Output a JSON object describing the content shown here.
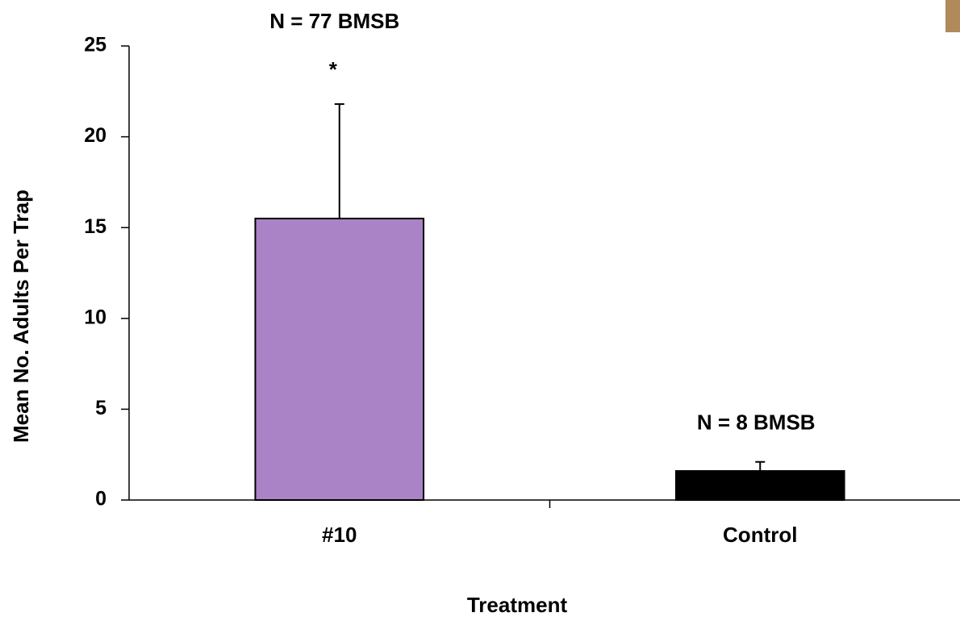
{
  "chart_data": {
    "type": "bar",
    "x_label": "Treatment",
    "y_label": "Mean No. Adults Per Trap",
    "categories": [
      "#10",
      "Control"
    ],
    "values": [
      15.5,
      1.6
    ],
    "errors": [
      6.3,
      0.5
    ],
    "colors": [
      "#a983c6",
      "#000000"
    ],
    "annotations": [
      "N = 77 BMSB",
      "*",
      "N = 8 BMSB"
    ],
    "ylim": [
      0,
      25
    ],
    "yticks": [
      0,
      5,
      10,
      15,
      20,
      25
    ],
    "grid": false
  }
}
